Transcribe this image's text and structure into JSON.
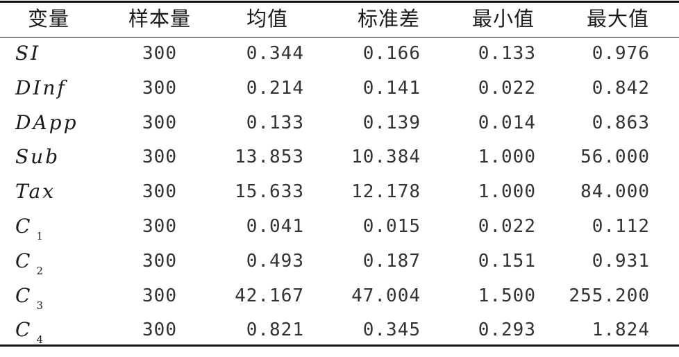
{
  "table": {
    "headers": [
      "变量",
      "样本量",
      "均值",
      "标准差",
      "最小值",
      "最大值"
    ],
    "rows": [
      {
        "var": "SI",
        "sub": "",
        "n": "300",
        "mean": "0.344",
        "sd": "0.166",
        "min": "0.133",
        "max": "0.976"
      },
      {
        "var": "DInf",
        "sub": "",
        "n": "300",
        "mean": "0.214",
        "sd": "0.141",
        "min": "0.022",
        "max": "0.842"
      },
      {
        "var": "DApp",
        "sub": "",
        "n": "300",
        "mean": "0.133",
        "sd": "0.139",
        "min": "0.014",
        "max": "0.863"
      },
      {
        "var": "Sub",
        "sub": "",
        "n": "300",
        "mean": "13.853",
        "sd": "10.384",
        "min": "1.000",
        "max": "56.000"
      },
      {
        "var": "Tax",
        "sub": "",
        "n": "300",
        "mean": "15.633",
        "sd": "12.178",
        "min": "1.000",
        "max": "84.000"
      },
      {
        "var": "C",
        "sub": "1",
        "n": "300",
        "mean": "0.041",
        "sd": "0.015",
        "min": "0.022",
        "max": "0.112"
      },
      {
        "var": "C",
        "sub": "2",
        "n": "300",
        "mean": "0.493",
        "sd": "0.187",
        "min": "0.151",
        "max": "0.931"
      },
      {
        "var": "C",
        "sub": "3",
        "n": "300",
        "mean": "42.167",
        "sd": "47.004",
        "min": "1.500",
        "max": "255.200"
      },
      {
        "var": "C",
        "sub": "4",
        "n": "300",
        "mean": "0.821",
        "sd": "0.345",
        "min": "0.293",
        "max": "1.824"
      }
    ]
  }
}
